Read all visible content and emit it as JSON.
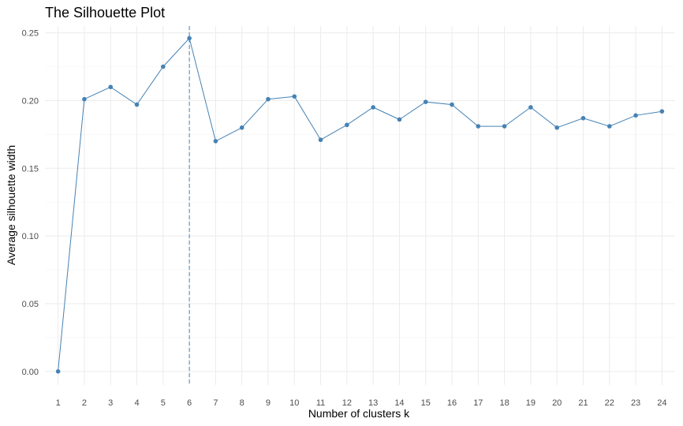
{
  "chart_data": {
    "type": "line",
    "title": "The Silhouette Plot",
    "xlabel": "Number of clusters k",
    "ylabel": "Average silhouette width",
    "categories": [
      "1",
      "2",
      "3",
      "4",
      "5",
      "6",
      "7",
      "8",
      "9",
      "10",
      "11",
      "12",
      "13",
      "14",
      "15",
      "16",
      "17",
      "18",
      "19",
      "20",
      "21",
      "22",
      "23",
      "24"
    ],
    "values": [
      0.0,
      0.201,
      0.21,
      0.197,
      0.225,
      0.246,
      0.17,
      0.18,
      0.201,
      0.203,
      0.171,
      0.182,
      0.195,
      0.186,
      0.199,
      0.197,
      0.181,
      0.181,
      0.195,
      0.18,
      0.187,
      0.181,
      0.189,
      0.192
    ],
    "ylim": [
      -0.01,
      0.255
    ],
    "yticks": [
      "0.00",
      "0.05",
      "0.10",
      "0.15",
      "0.20",
      "0.25"
    ],
    "yminor": [
      0.025,
      0.075,
      0.125,
      0.175,
      0.225
    ],
    "vline_at": "6",
    "grid": true,
    "colors": {
      "line": "#4682b4",
      "grid_major": "#ebebeb",
      "grid_minor": "#f4f4f4"
    }
  }
}
